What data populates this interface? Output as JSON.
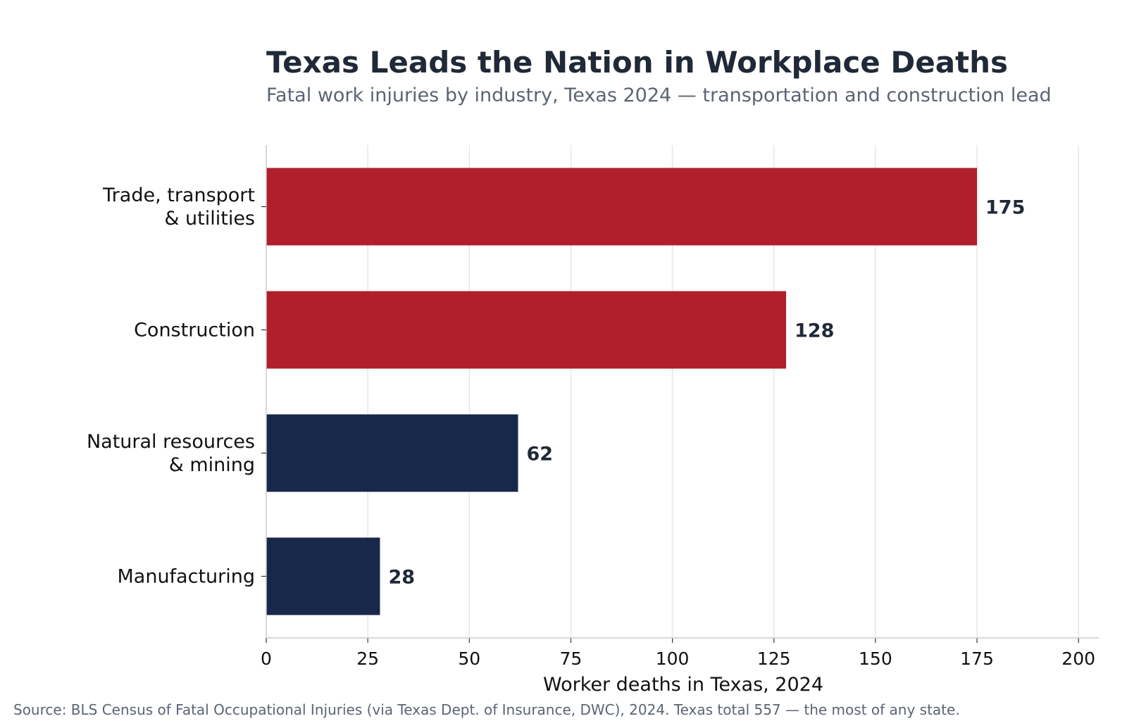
{
  "chart_data": {
    "type": "bar",
    "orientation": "horizontal",
    "title": "Texas Leads the Nation in Workplace Deaths",
    "subtitle": "Fatal work injuries by industry, Texas 2024 — transportation and construction lead",
    "categories": [
      [
        "Trade, transport",
        "& utilities"
      ],
      [
        "Construction"
      ],
      [
        "Natural resources",
        "& mining"
      ],
      [
        "Manufacturing"
      ]
    ],
    "values": [
      175,
      128,
      62,
      28
    ],
    "value_labels": [
      "175",
      "128",
      "62",
      "28"
    ],
    "bar_colors": [
      "#b01f2c",
      "#b01f2c",
      "#18284b",
      "#18284b"
    ],
    "xlabel": "Worker deaths in Texas, 2024",
    "ylabel": "",
    "xlim": [
      0,
      205
    ],
    "xticks": [
      0,
      25,
      50,
      75,
      100,
      125,
      150,
      175,
      200
    ],
    "grid": "vertical",
    "source": "Source: BLS Census of Fatal Occupational Injuries (via Texas Dept. of Insurance, DWC), 2024. Texas total 557 — the most of any state."
  }
}
